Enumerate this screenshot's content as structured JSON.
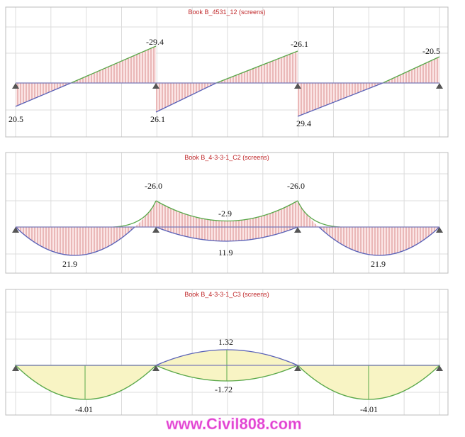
{
  "panels": [
    {
      "title": "Book B_4531_12 (screens)",
      "labels": [
        "20.5",
        "-29.4",
        "26.1",
        "-26.1",
        "29.4",
        "-20.5"
      ]
    },
    {
      "title": "Book B_4-3-3-1_C2 (screens)",
      "labels": [
        "-26.0",
        "-2.9",
        "11.9",
        "21.9",
        "-26.0",
        "21.9"
      ]
    },
    {
      "title": "Book B_4-3-3-1_C3 (screens)",
      "labels": [
        "1.32",
        "-1.72",
        "-4.01",
        "-4.01"
      ]
    }
  ],
  "watermark": "www.Civil808.com"
}
